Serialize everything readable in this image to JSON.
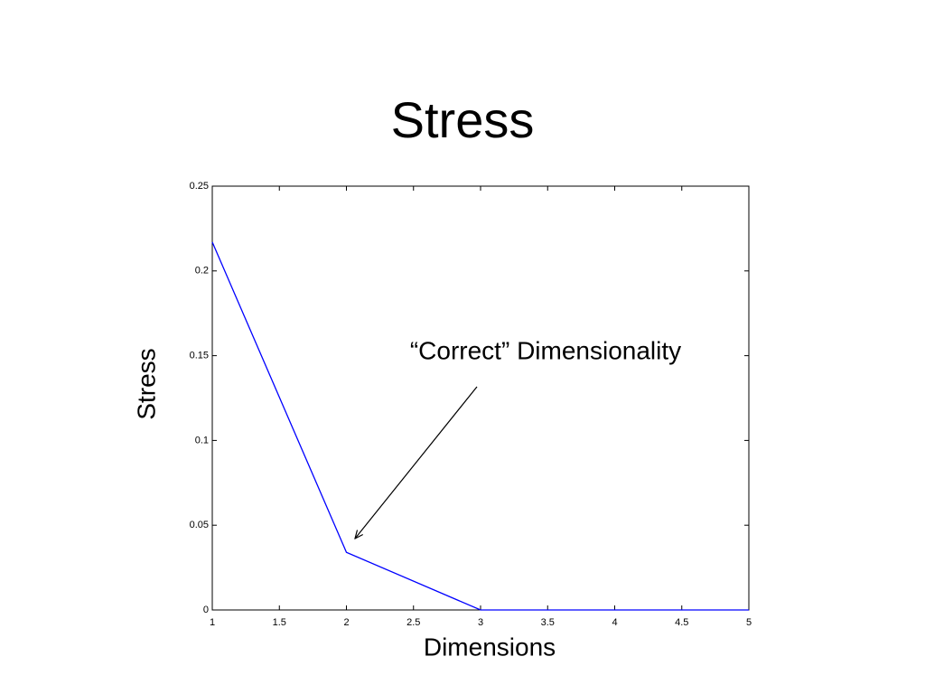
{
  "chart_data": {
    "type": "line",
    "title": "Stress",
    "x_label": "Dimensions",
    "y_label": "Stress",
    "annotation": "“Correct” Dimensionality",
    "x": [
      1,
      2,
      3,
      4,
      5
    ],
    "values": [
      0.217,
      0.034,
      0,
      0,
      0
    ],
    "color": "#0000ff",
    "xlim": [
      1,
      5
    ],
    "xticks": [
      1,
      1.5,
      2,
      2.5,
      3,
      3.5,
      4,
      4.5,
      5
    ],
    "ylim": [
      0,
      0.25
    ],
    "yticks": [
      0,
      0.05,
      0.1,
      0.15,
      0.2,
      0.25
    ],
    "grid": false
  }
}
